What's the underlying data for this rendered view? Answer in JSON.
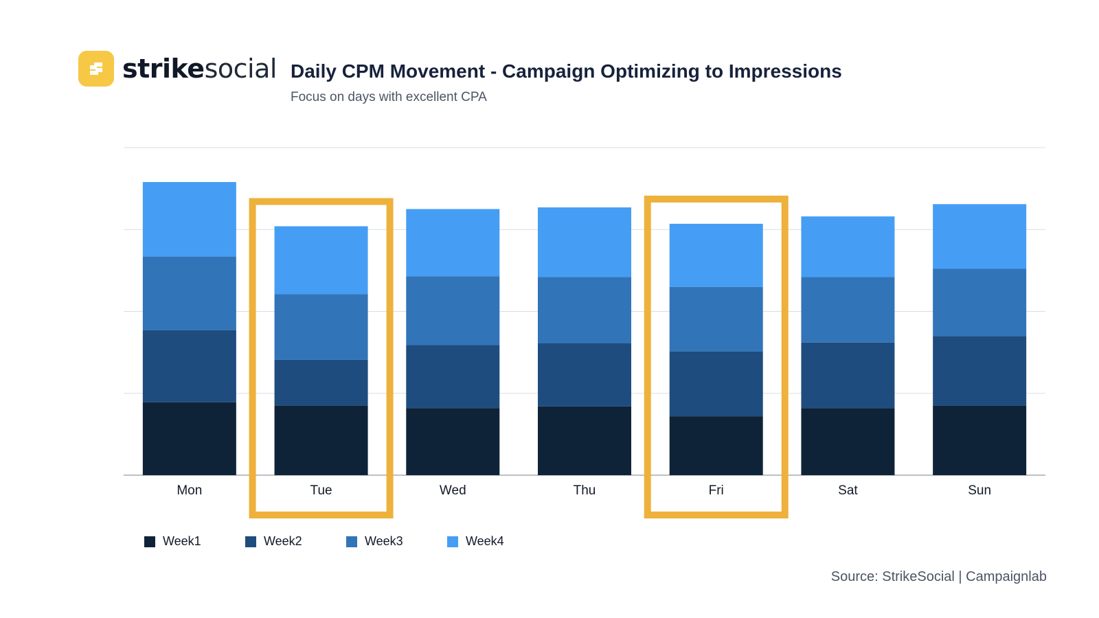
{
  "logo": {
    "text_strong": "strike",
    "text_light": "social",
    "badge_icon": "stylized-s-icon",
    "badge_color": "#F7C846"
  },
  "chart_data": {
    "type": "bar",
    "stacked": true,
    "title": "Daily CPM Movement - Campaign Optimizing to Impressions",
    "subtitle": "Focus on days with excellent CPA",
    "categories": [
      "Mon",
      "Tue",
      "Wed",
      "Thu",
      "Fri",
      "Sat",
      "Sun"
    ],
    "series": [
      {
        "name": "Week1",
        "color": "#0F2338",
        "values": [
          0.89,
          0.85,
          0.82,
          0.84,
          0.72,
          0.82,
          0.85
        ]
      },
      {
        "name": "Week2",
        "color": "#1F4C7E",
        "values": [
          0.88,
          0.56,
          0.77,
          0.77,
          0.79,
          0.8,
          0.85
        ]
      },
      {
        "name": "Week3",
        "color": "#3174B8",
        "values": [
          0.9,
          0.8,
          0.84,
          0.81,
          0.79,
          0.8,
          0.82
        ]
      },
      {
        "name": "Week4",
        "color": "#469DF4",
        "values": [
          0.91,
          0.83,
          0.82,
          0.85,
          0.77,
          0.74,
          0.79
        ]
      }
    ],
    "highlighted_categories": [
      "Tue",
      "Fri"
    ],
    "highlight_color": "#EEB13C",
    "ylim": [
      0,
      4
    ],
    "y_tick_labels": false,
    "grid": true,
    "legend_position": "bottom-left"
  },
  "source": {
    "text": "Source:  StrikeSocial | Campaignlab"
  }
}
